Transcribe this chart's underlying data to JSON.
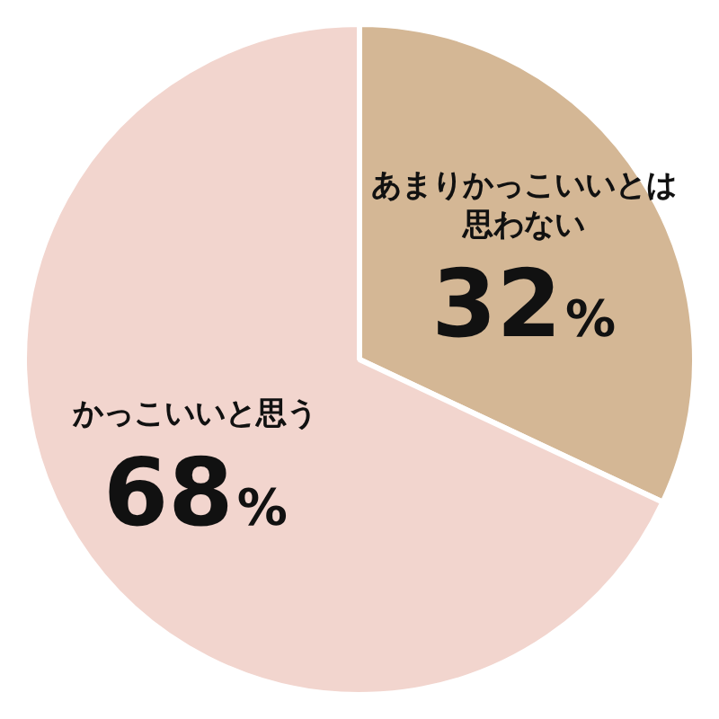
{
  "chart_data": {
    "type": "pie",
    "categories": [
      "あまりかっこいいとは思わない",
      "かっこいいと思う"
    ],
    "values": [
      32,
      68
    ],
    "colors": [
      "#d4b795",
      "#f2d5ce"
    ],
    "value_labels": [
      "32%",
      "68%"
    ],
    "legend": false
  }
}
